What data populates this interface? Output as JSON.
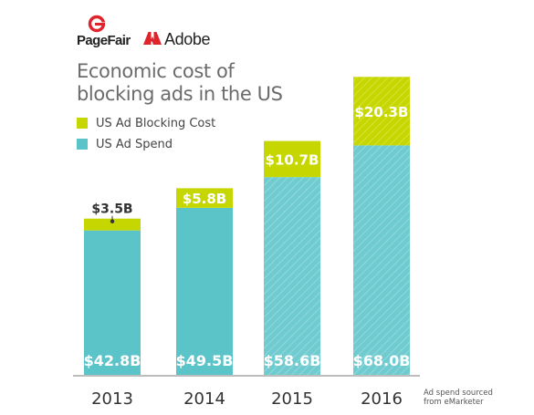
{
  "brand": {
    "pagefair": "PageFair",
    "adobe": "Adobe"
  },
  "source_note": [
    "Ad spend sourced",
    "from eMarketer"
  ],
  "colors": {
    "spend": "#5bc4c9",
    "blocking": "#c6d600",
    "spend_hatch": "#86d3d7",
    "axis": "#bdbdbd",
    "pagefair_red": "#e0242b",
    "adobe_red": "#e0242b"
  },
  "chart_data": {
    "type": "bar",
    "stacked": true,
    "title": "Economic cost of blocking ads in the US",
    "title_lines": [
      "Economic cost of",
      "blocking ads in the US"
    ],
    "categories": [
      "2013",
      "2014",
      "2015",
      "2016"
    ],
    "series": [
      {
        "name": "US Ad Spend",
        "values": [
          42.8,
          49.5,
          58.6,
          68.0
        ],
        "labels": [
          "$42.8B",
          "$49.5B",
          "$58.6B",
          "$68.0B"
        ],
        "hatched": [
          false,
          false,
          true,
          true
        ]
      },
      {
        "name": "US Ad Blocking Cost",
        "values": [
          3.5,
          5.8,
          10.7,
          20.3
        ],
        "labels": [
          "$3.5B",
          "$5.8B",
          "$10.7B",
          "$20.3B"
        ],
        "hatched": [
          false,
          false,
          false,
          true
        ]
      }
    ],
    "legend": [
      "US Ad Blocking Cost",
      "US Ad Spend"
    ],
    "legend_position": "top-left",
    "ylim": [
      0,
      90
    ],
    "grid": false
  }
}
